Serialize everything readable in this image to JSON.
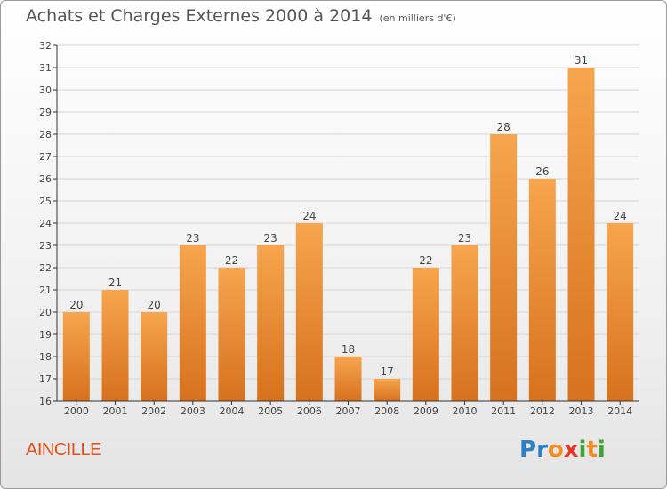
{
  "title": "Achats et Charges Externes 2000 à 2014",
  "subtitle": "(en milliers d'€)",
  "commune": "AINCILLE",
  "logo": {
    "letters": [
      "P",
      "r",
      "o",
      "x",
      "i",
      "t",
      "i"
    ],
    "colors": [
      "#2e7fc6",
      "#2e7fc6",
      "#f28c1e",
      "#e8332a",
      "#3aa635",
      "#f28c1e",
      "#3aa635"
    ]
  },
  "colors": {
    "bar_top": "#f7a54e",
    "bar_bottom": "#d7711d",
    "grid": "#d6d6d6",
    "axis": "#333333",
    "text": "#444444"
  },
  "chart_data": {
    "type": "bar",
    "categories": [
      "2000",
      "2001",
      "2002",
      "2003",
      "2004",
      "2005",
      "2006",
      "2007",
      "2008",
      "2009",
      "2010",
      "2011",
      "2012",
      "2013",
      "2014"
    ],
    "values": [
      20,
      21,
      20,
      23,
      22,
      23,
      24,
      18,
      17,
      22,
      23,
      28,
      26,
      31,
      24
    ],
    "ylim": [
      16,
      32
    ],
    "yticks": [
      16,
      17,
      18,
      19,
      20,
      21,
      22,
      23,
      24,
      25,
      26,
      27,
      28,
      29,
      30,
      31,
      32
    ],
    "grid": true
  }
}
